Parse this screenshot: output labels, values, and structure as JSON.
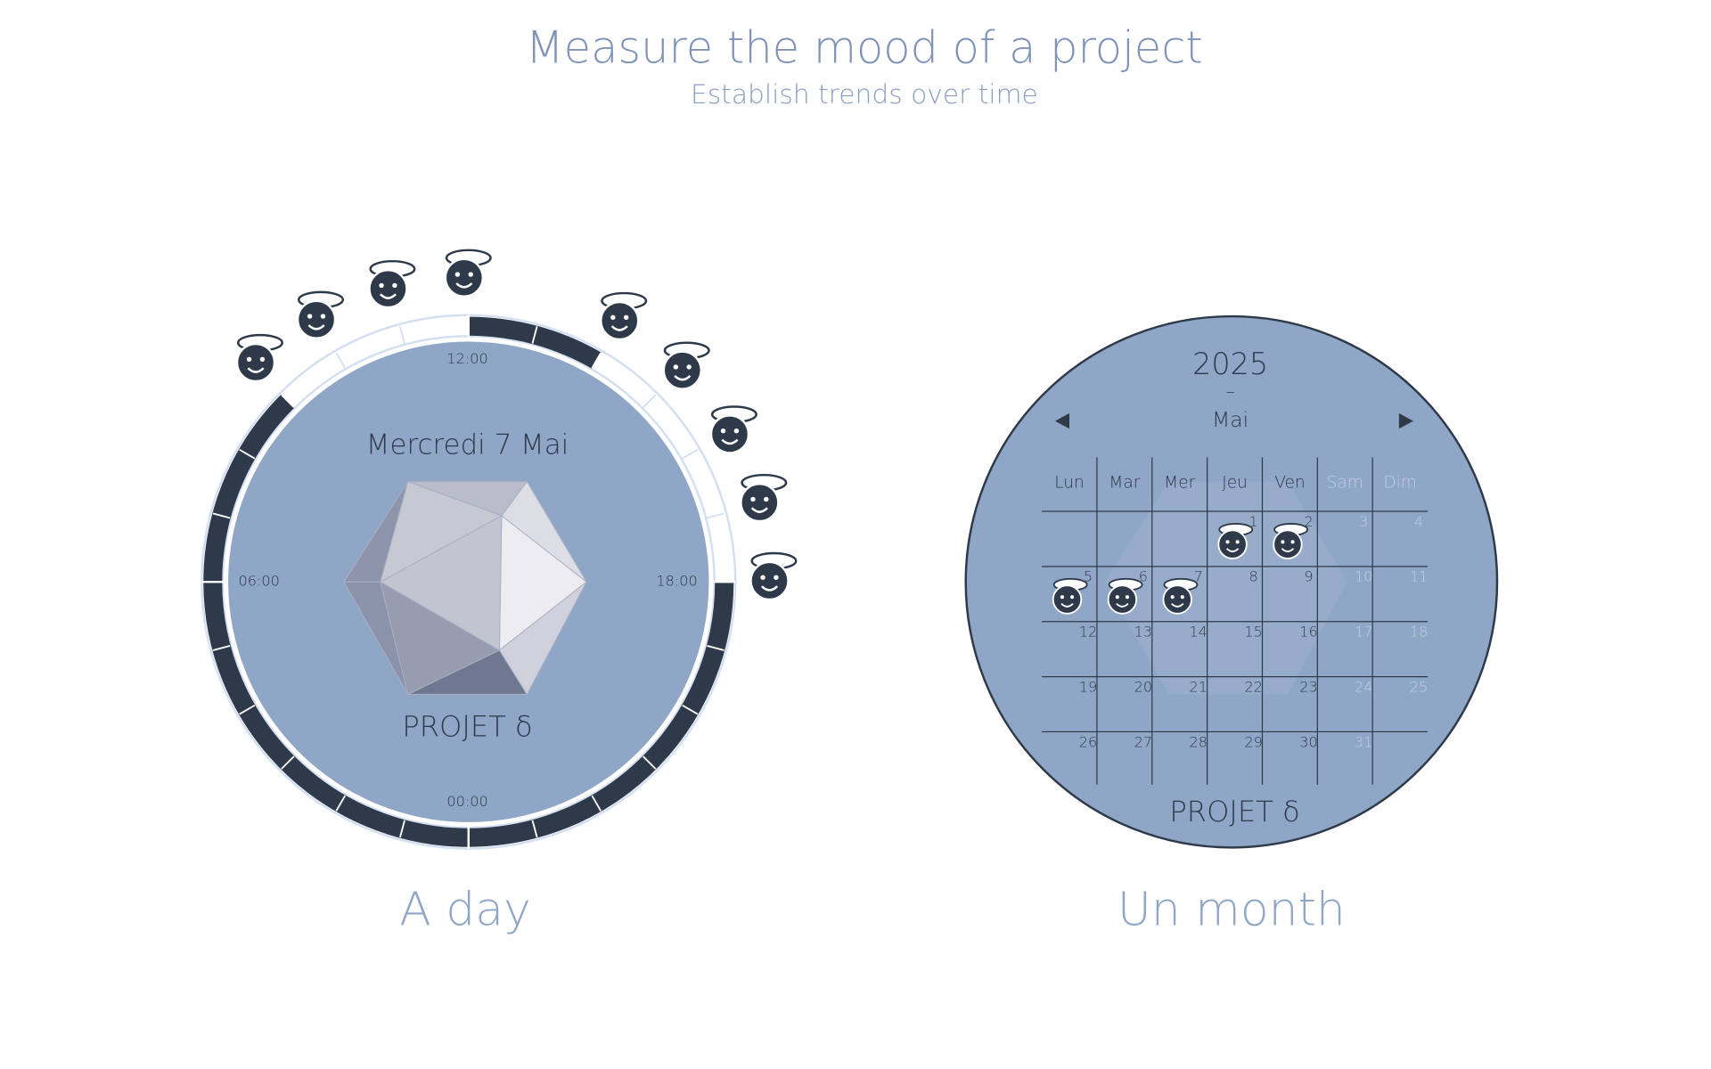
{
  "header": {
    "title": "Measure the mood of a project",
    "subtitle": "Establish trends over time"
  },
  "day": {
    "date": "Mercredi 7 Mai",
    "time_labels": [
      "12:00",
      "06:00",
      "18:00",
      "00:00"
    ],
    "project": "PROJET δ",
    "caption": "A day"
  },
  "month": {
    "year": "2025",
    "separator": "–",
    "month": "Mai",
    "weekdays": [
      "Lun",
      "Mar",
      "Mer",
      "Jeu",
      "Ven",
      "Sam",
      "Dim"
    ],
    "days": [
      1,
      2,
      3,
      4,
      5,
      6,
      7,
      8,
      9,
      10,
      11,
      12,
      13,
      14,
      15,
      16,
      17,
      18,
      19,
      20,
      21,
      22,
      23,
      24,
      25,
      26,
      27,
      28,
      29,
      30,
      31
    ],
    "project": "PROJET δ",
    "caption": "Un month"
  }
}
